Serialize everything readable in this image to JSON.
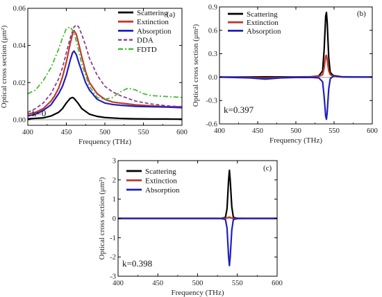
{
  "chart_data": [
    {
      "type": "line",
      "panel_label": "(a)",
      "annotation": "k=0",
      "xlabel": "Frequency (THz)",
      "ylabel": "Optical cross section (μm²)",
      "xlim": [
        400,
        600
      ],
      "ylim": [
        -0.003,
        0.06
      ],
      "xticks": [
        400,
        450,
        500,
        550,
        600
      ],
      "yticks": [
        0.0,
        0.02,
        0.04,
        0.06
      ],
      "ytick_labels": [
        "0.00",
        "0.02",
        "0.04",
        "0.06"
      ],
      "legend_position": "top-right",
      "series": [
        {
          "name": "Scattering",
          "color": "#000000",
          "width": 2.2,
          "dash": "",
          "x": [
            400,
            420,
            430,
            440,
            445,
            450,
            455,
            458,
            460,
            465,
            470,
            480,
            490,
            500,
            520,
            540,
            560,
            580,
            600
          ],
          "y": [
            0.0005,
            0.001,
            0.002,
            0.004,
            0.006,
            0.009,
            0.0115,
            0.012,
            0.0115,
            0.009,
            0.006,
            0.003,
            0.0018,
            0.0012,
            0.0007,
            0.0005,
            0.0004,
            0.0004,
            0.0003
          ]
        },
        {
          "name": "Extinction",
          "color": "#c0392b",
          "width": 2.2,
          "dash": "",
          "x": [
            400,
            410,
            420,
            430,
            435,
            440,
            445,
            450,
            455,
            458,
            460,
            463,
            466,
            470,
            475,
            480,
            490,
            500,
            510,
            520,
            540,
            560,
            580,
            600
          ],
          "y": [
            0.003,
            0.004,
            0.006,
            0.01,
            0.013,
            0.017,
            0.023,
            0.031,
            0.041,
            0.046,
            0.048,
            0.046,
            0.041,
            0.034,
            0.026,
            0.02,
            0.014,
            0.011,
            0.0095,
            0.009,
            0.008,
            0.0075,
            0.007,
            0.007
          ]
        },
        {
          "name": "Absorption",
          "color": "#1f1fbf",
          "width": 2.2,
          "dash": "",
          "x": [
            400,
            410,
            420,
            430,
            435,
            440,
            445,
            450,
            455,
            458,
            460,
            463,
            466,
            470,
            475,
            480,
            490,
            500,
            510,
            520,
            540,
            560,
            580,
            600
          ],
          "y": [
            0.002,
            0.003,
            0.005,
            0.008,
            0.011,
            0.014,
            0.018,
            0.024,
            0.032,
            0.036,
            0.037,
            0.035,
            0.031,
            0.026,
            0.02,
            0.016,
            0.011,
            0.009,
            0.0082,
            0.0078,
            0.0072,
            0.007,
            0.0068,
            0.0065
          ]
        },
        {
          "name": "DDA",
          "color": "#8e3a8e",
          "width": 1.8,
          "dash": "5,3",
          "x": [
            400,
            410,
            420,
            430,
            440,
            445,
            450,
            455,
            460,
            463,
            466,
            470,
            475,
            480,
            490,
            500,
            510,
            520,
            540,
            560,
            580,
            600
          ],
          "y": [
            0.004,
            0.006,
            0.009,
            0.014,
            0.022,
            0.028,
            0.036,
            0.044,
            0.05,
            0.051,
            0.05,
            0.046,
            0.04,
            0.033,
            0.024,
            0.018,
            0.015,
            0.013,
            0.01,
            0.0085,
            0.0075,
            0.007
          ]
        },
        {
          "name": "FDTD",
          "color": "#44bb33",
          "width": 1.8,
          "dash": "7,3,2,3",
          "x": [
            400,
            410,
            420,
            430,
            440,
            445,
            450,
            455,
            460,
            465,
            470,
            480,
            490,
            500,
            510,
            520,
            530,
            540,
            550,
            560,
            580,
            600
          ],
          "y": [
            0.014,
            0.016,
            0.021,
            0.028,
            0.038,
            0.044,
            0.049,
            0.05,
            0.047,
            0.039,
            0.03,
            0.018,
            0.012,
            0.011,
            0.012,
            0.015,
            0.017,
            0.016,
            0.014,
            0.013,
            0.0125,
            0.012
          ]
        }
      ]
    },
    {
      "type": "line",
      "panel_label": "(b)",
      "annotation": "k=0.397",
      "xlabel": "Frequency (THz)",
      "ylabel": "Optical cross section (μm²)",
      "xlim": [
        400,
        600
      ],
      "ylim": [
        -0.6,
        0.9
      ],
      "xticks": [
        400,
        450,
        500,
        550,
        600
      ],
      "yticks": [
        -0.6,
        -0.3,
        0.0,
        0.3,
        0.6,
        0.9
      ],
      "ytick_labels": [
        "-0.6",
        "-0.3",
        "0.0",
        "0.3",
        "0.6",
        "0.9"
      ],
      "legend_position": "top-left",
      "series": [
        {
          "name": "Scattering",
          "color": "#000000",
          "width": 2.2,
          "dash": "",
          "x": [
            400,
            440,
            460,
            480,
            500,
            520,
            530,
            535,
            537,
            539,
            540,
            541,
            543,
            545,
            550,
            560,
            600
          ],
          "y": [
            0,
            0.002,
            0.004,
            0.003,
            0.002,
            0.005,
            0.015,
            0.08,
            0.35,
            0.78,
            0.83,
            0.7,
            0.25,
            0.06,
            0.01,
            0.002,
            0
          ]
        },
        {
          "name": "Extinction",
          "color": "#c0392b",
          "width": 2.2,
          "dash": "",
          "x": [
            400,
            440,
            460,
            480,
            500,
            520,
            530,
            535,
            537,
            539,
            540,
            541,
            543,
            545,
            550,
            560,
            600
          ],
          "y": [
            0,
            -0.005,
            -0.012,
            -0.005,
            -0.002,
            0.003,
            0.01,
            0.03,
            0.12,
            0.27,
            0.28,
            0.22,
            0.08,
            0.03,
            0.01,
            0.003,
            0
          ]
        },
        {
          "name": "Absorption",
          "color": "#1f1fbf",
          "width": 2.2,
          "dash": "",
          "x": [
            400,
            440,
            460,
            480,
            500,
            520,
            530,
            535,
            537,
            539,
            540,
            541,
            543,
            545,
            550,
            560,
            600
          ],
          "y": [
            0,
            -0.01,
            -0.025,
            -0.01,
            -0.004,
            -0.003,
            -0.01,
            -0.06,
            -0.25,
            -0.5,
            -0.54,
            -0.45,
            -0.15,
            -0.02,
            0.02,
            0.005,
            0
          ]
        }
      ]
    },
    {
      "type": "line",
      "panel_label": "(c)",
      "annotation": "k=0.398",
      "xlabel": "Frequency (THz)",
      "ylabel": "Optical cross section (μm²)",
      "xlim": [
        400,
        600
      ],
      "ylim": [
        -3,
        3
      ],
      "xticks": [
        400,
        450,
        500,
        550,
        600
      ],
      "yticks": [
        -3,
        -2,
        -1,
        0,
        1,
        2,
        3
      ],
      "ytick_labels": [
        "-3",
        "-2",
        "-1",
        "0",
        "1",
        "2",
        "3"
      ],
      "legend_position": "top-left",
      "series": [
        {
          "name": "Scattering",
          "color": "#000000",
          "width": 2.2,
          "dash": "",
          "x": [
            400,
            520,
            530,
            535,
            537,
            539,
            540,
            541,
            543,
            545,
            550,
            560,
            600
          ],
          "y": [
            0,
            0,
            0.005,
            0.05,
            0.5,
            2.0,
            2.5,
            2.0,
            0.6,
            0.05,
            0.01,
            0,
            0
          ]
        },
        {
          "name": "Extinction",
          "color": "#c0392b",
          "width": 2.2,
          "dash": "",
          "x": [
            400,
            520,
            530,
            535,
            537,
            539,
            540,
            541,
            543,
            545,
            550,
            560,
            600
          ],
          "y": [
            0,
            0,
            0,
            0.01,
            0.03,
            0.06,
            0.07,
            0.05,
            0.02,
            0.005,
            0,
            0,
            0
          ]
        },
        {
          "name": "Absorption",
          "color": "#1f1fbf",
          "width": 2.2,
          "dash": "",
          "x": [
            400,
            520,
            530,
            535,
            537,
            539,
            540,
            541,
            543,
            545,
            550,
            560,
            600
          ],
          "y": [
            0,
            0,
            -0.005,
            -0.05,
            -0.5,
            -2.0,
            -2.45,
            -2.0,
            -0.6,
            -0.05,
            -0.01,
            0,
            0
          ]
        }
      ]
    }
  ]
}
